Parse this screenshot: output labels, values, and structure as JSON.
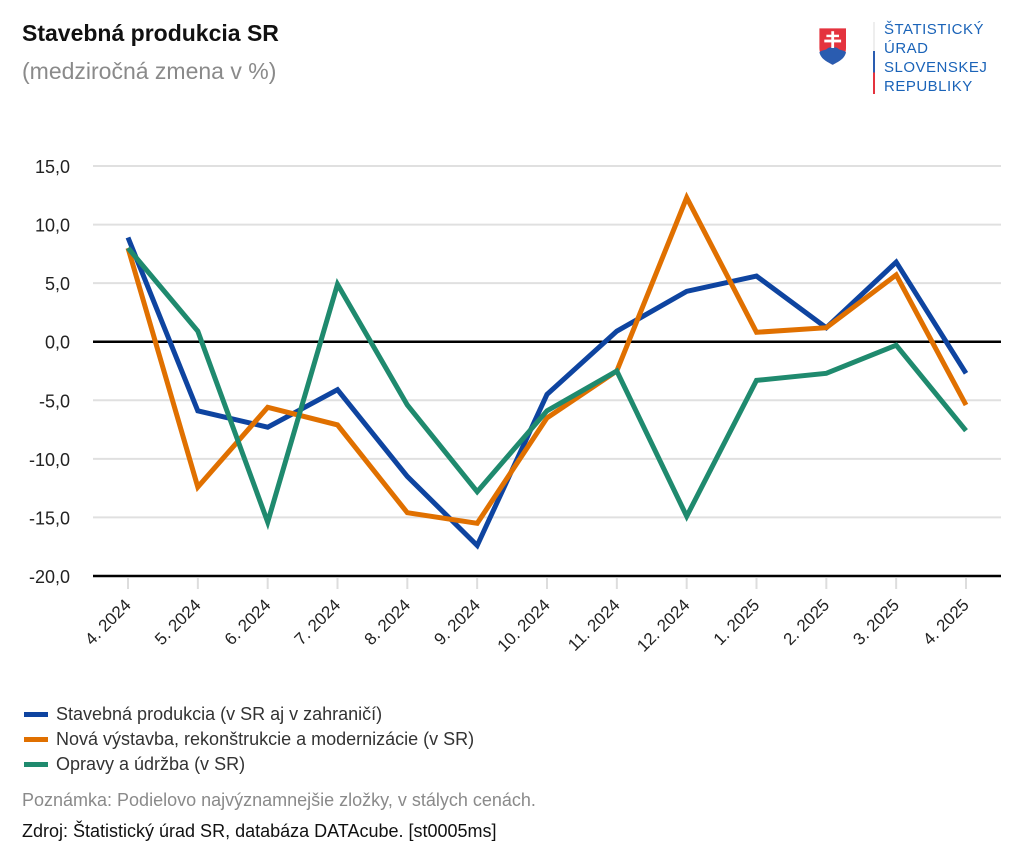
{
  "header": {
    "title": "Stavebná produkcia SR",
    "subtitle": "(medziročná zmena v %)"
  },
  "logo": {
    "icon": "slovak-coat-of-arms-icon",
    "lines": [
      "ŠTATISTICKÝ",
      "ÚRAD",
      "SLOVENSKEJ",
      "REPUBLIKY"
    ]
  },
  "chart_data": {
    "type": "line",
    "title": "Stavebná produkcia SR",
    "subtitle": "(medziročná zmena v %)",
    "xlabel": "",
    "ylabel": "",
    "x": [
      "4. 2024",
      "5. 2024",
      "6. 2024",
      "7. 2024",
      "8. 2024",
      "9. 2024",
      "10. 2024",
      "11. 2024",
      "12. 2024",
      "1. 2025",
      "2. 2025",
      "3. 2025",
      "4. 2025"
    ],
    "ylim": [
      -20,
      15
    ],
    "yticks": [
      15,
      10,
      5,
      0,
      -5,
      -10,
      -15,
      -20
    ],
    "ytick_labels": [
      "15,0",
      "10,0",
      "5,0",
      "0,0",
      "-5,0",
      "-10,0",
      "-15,0",
      "-20,0"
    ],
    "grid": true,
    "legend_position": "bottom-left",
    "series": [
      {
        "name": "Stavebná produkcia (v SR aj v zahraničí)",
        "color": "#0e44a0",
        "values": [
          8.9,
          -5.9,
          -7.3,
          -4.1,
          -11.5,
          -17.4,
          -4.5,
          0.9,
          4.3,
          5.6,
          1.2,
          6.8,
          -2.7
        ]
      },
      {
        "name": "Nová výstavba, rekonštrukcie a modernizácie (v SR)",
        "color": "#e07000",
        "values": [
          8.0,
          -12.4,
          -5.6,
          -7.1,
          -14.6,
          -15.5,
          -6.5,
          -2.5,
          12.3,
          0.8,
          1.2,
          5.7,
          -5.4
        ]
      },
      {
        "name": "Opravy a údržba (v SR)",
        "color": "#1f8a6e",
        "values": [
          8.0,
          0.9,
          -15.4,
          4.9,
          -5.4,
          -12.8,
          -5.9,
          -2.5,
          -14.9,
          -3.3,
          -2.7,
          -0.3,
          -7.6
        ]
      }
    ]
  },
  "footer": {
    "note": "Poznámka: Podielovo najvýznamnejšie zložky, v stálych cenách.",
    "source": "Zdroj: Štatistický úrad SR, databáza DATAcube. [st0005ms]"
  }
}
